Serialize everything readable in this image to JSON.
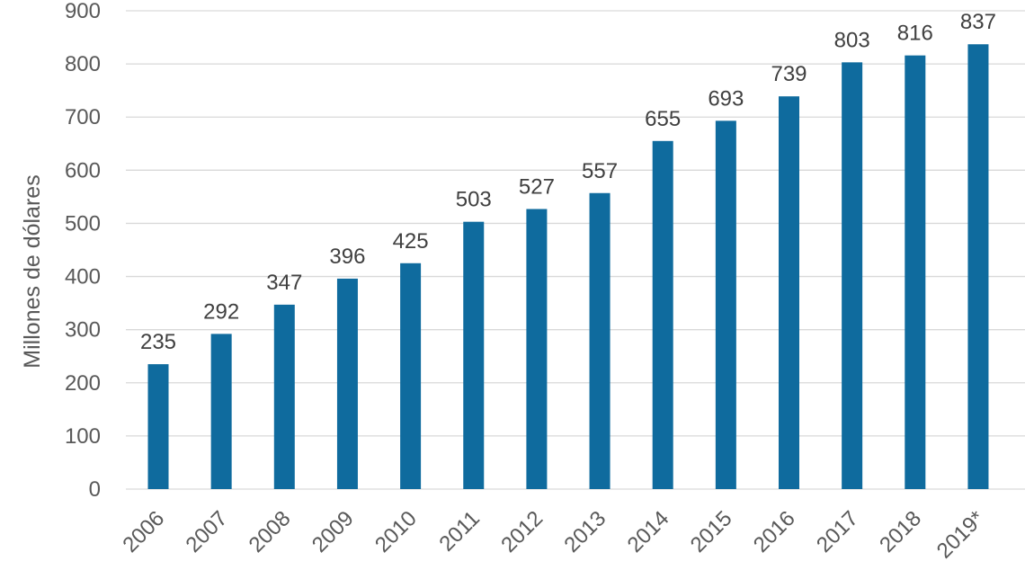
{
  "chart_data": {
    "type": "bar",
    "title": "",
    "xlabel": "",
    "ylabel": "Millones de dólares",
    "categories": [
      "2006",
      "2007",
      "2008",
      "2009",
      "2010",
      "2011",
      "2012",
      "2013",
      "2014",
      "2015",
      "2016",
      "2017",
      "2018",
      "2019*"
    ],
    "values": [
      235,
      292,
      347,
      396,
      425,
      503,
      527,
      557,
      655,
      693,
      739,
      803,
      816,
      837
    ],
    "ylim": [
      0,
      900
    ],
    "yticks": [
      0,
      100,
      200,
      300,
      400,
      500,
      600,
      700,
      800,
      900
    ],
    "grid": true,
    "legend": "none",
    "bar_color": "#0f6b9e",
    "data_labels": true
  }
}
